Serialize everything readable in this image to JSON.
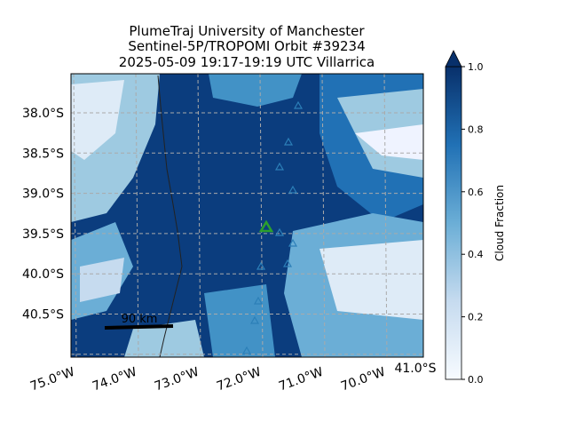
{
  "map": {
    "title_lines": [
      "PlumeTraj    University of Manchester",
      "Sentinel-5P/TROPOMI Orbit #39234",
      "2025-05-09    19:17-19:19 UTC    Villarrica"
    ],
    "lat_ticks": [
      {
        "value": -38.0,
        "label": "38.0°S"
      },
      {
        "value": -38.5,
        "label": "38.5°S"
      },
      {
        "value": -39.0,
        "label": "39.0°S"
      },
      {
        "value": -39.5,
        "label": "39.5°S"
      },
      {
        "value": -40.0,
        "label": "40.0°S"
      },
      {
        "value": -40.5,
        "label": "40.5°S"
      },
      {
        "value": -41.0,
        "label": "41.0°S"
      }
    ],
    "lon_ticks": [
      {
        "value": -75.0,
        "label": "75.0°W"
      },
      {
        "value": -74.0,
        "label": "74.0°W"
      },
      {
        "value": -73.0,
        "label": "73.0°W"
      },
      {
        "value": -72.0,
        "label": "72.0°W"
      },
      {
        "value": -71.0,
        "label": "71.0°W"
      },
      {
        "value": -70.0,
        "label": "70.0°W"
      }
    ],
    "scale_bar": "90 km",
    "colorbar": {
      "label": "Cloud Fraction",
      "range": [
        0,
        1
      ],
      "ticks": [
        {
          "value": 0,
          "label": "0.0"
        },
        0.2,
        0.4,
        0.6,
        0.8,
        {
          "value": 1,
          "label": "1.0"
        }
      ]
    }
  }
}
